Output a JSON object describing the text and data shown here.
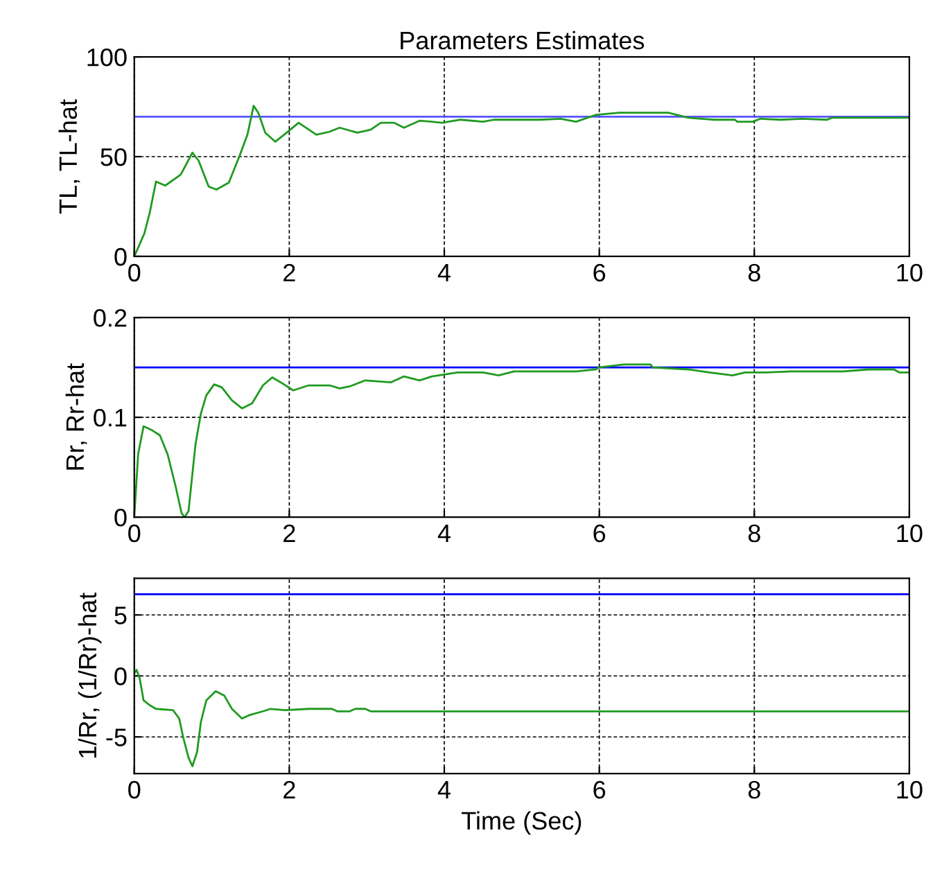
{
  "chart_data": [
    {
      "type": "line",
      "title": "Parameters Estimates",
      "ylabel": "TL, TL-hat",
      "xlim": [
        0,
        10
      ],
      "ylim": [
        0,
        100
      ],
      "xticks": [
        0,
        2,
        4,
        6,
        8,
        10
      ],
      "yticks": [
        0,
        50,
        100
      ],
      "grid": true,
      "series": [
        {
          "color": "#5555ff",
          "x": [
            0,
            10
          ],
          "values": [
            70,
            70
          ]
        },
        {
          "color": "#1f9a1f",
          "x": [
            0,
            0.13,
            0.2,
            0.28,
            0.4,
            0.6,
            0.75,
            0.83,
            0.96,
            1.06,
            1.22,
            1.36,
            1.46,
            1.54,
            1.6,
            1.69,
            1.82,
            1.95,
            2.12,
            2.35,
            2.52,
            2.65,
            2.88,
            3.05,
            3.18,
            3.35,
            3.48,
            3.68,
            3.84,
            3.97,
            4.21,
            4.5,
            4.64,
            5.23,
            5.5,
            5.7,
            5.96,
            6.26,
            6.89,
            7.15,
            7.48,
            7.75,
            7.78,
            7.98,
            8.08,
            8.34,
            8.61,
            8.94,
            9.0,
            10
          ],
          "values": [
            0,
            11.5,
            22,
            37.5,
            35.5,
            41,
            52,
            48,
            35,
            33.5,
            37,
            50.5,
            61,
            75.5,
            72,
            62,
            57.5,
            61.5,
            67,
            61,
            62.5,
            64.5,
            62,
            63.5,
            67,
            67,
            64.5,
            68,
            67.5,
            67,
            68.5,
            67.5,
            68.5,
            68.5,
            69,
            67.5,
            71,
            72,
            72,
            69.5,
            68.5,
            68.5,
            67.5,
            67.5,
            69,
            68.5,
            69,
            68.5,
            69.5,
            69.5
          ]
        }
      ]
    },
    {
      "type": "line",
      "ylabel": "Rr, Rr-hat",
      "xlim": [
        0,
        10
      ],
      "ylim": [
        0,
        0.2
      ],
      "xticks": [
        0,
        2,
        4,
        6,
        8,
        10
      ],
      "yticks": [
        0,
        0.1,
        0.2
      ],
      "grid": true,
      "series": [
        {
          "color": "#0000ff",
          "x": [
            0,
            10
          ],
          "values": [
            0.15,
            0.15
          ]
        },
        {
          "color": "#1f9a1f",
          "x": [
            0,
            0.05,
            0.12,
            0.23,
            0.33,
            0.43,
            0.53,
            0.61,
            0.65,
            0.7,
            0.79,
            0.86,
            0.93,
            1.03,
            1.13,
            1.26,
            1.39,
            1.52,
            1.66,
            1.78,
            1.89,
            2.05,
            2.25,
            2.52,
            2.65,
            2.78,
            2.98,
            3.31,
            3.48,
            3.68,
            3.84,
            4.17,
            4.5,
            4.7,
            4.9,
            5.17,
            5.7,
            5.96,
            5.99,
            6.32,
            6.66,
            6.69,
            7.15,
            7.42,
            7.72,
            7.88,
            8.15,
            8.48,
            9.15,
            9.48,
            9.8,
            9.87,
            10
          ],
          "values": [
            0,
            0.063,
            0.091,
            0.087,
            0.082,
            0.063,
            0.032,
            0.004,
            0,
            0.006,
            0.073,
            0.104,
            0.122,
            0.133,
            0.13,
            0.117,
            0.109,
            0.114,
            0.132,
            0.14,
            0.135,
            0.127,
            0.132,
            0.132,
            0.129,
            0.131,
            0.137,
            0.135,
            0.141,
            0.137,
            0.141,
            0.145,
            0.145,
            0.142,
            0.146,
            0.146,
            0.146,
            0.148,
            0.15,
            0.153,
            0.153,
            0.15,
            0.148,
            0.145,
            0.142,
            0.145,
            0.145,
            0.146,
            0.146,
            0.148,
            0.148,
            0.145,
            0.145
          ]
        }
      ]
    },
    {
      "type": "line",
      "ylabel": "1/Rr, (1/Rr)-hat",
      "xlabel": "Time (Sec)",
      "xlim": [
        0,
        10
      ],
      "ylim": [
        -8,
        8
      ],
      "xticks": [
        0,
        2,
        4,
        6,
        8,
        10
      ],
      "yticks": [
        {
          "value": -5,
          "label": "-5"
        },
        0,
        5
      ],
      "grid": true,
      "series": [
        {
          "color": "#0000ff",
          "x": [
            0,
            10
          ],
          "values": [
            6.7,
            6.7
          ]
        },
        {
          "color": "#1f9a1f",
          "x": [
            0,
            0.03,
            0.07,
            0.12,
            0.2,
            0.28,
            0.5,
            0.58,
            0.63,
            0.7,
            0.75,
            0.81,
            0.86,
            0.93,
            1.05,
            1.16,
            1.26,
            1.39,
            1.49,
            1.66,
            1.76,
            1.95,
            2.25,
            2.55,
            2.62,
            2.78,
            2.85,
            2.98,
            3.05,
            10
          ],
          "values": [
            0.2,
            0.5,
            -0.2,
            -2.0,
            -2.4,
            -2.7,
            -2.8,
            -3.5,
            -5.0,
            -6.7,
            -7.4,
            -6.25,
            -3.75,
            -2.0,
            -1.25,
            -1.6,
            -2.7,
            -3.5,
            -3.2,
            -2.9,
            -2.7,
            -2.8,
            -2.7,
            -2.7,
            -2.9,
            -2.9,
            -2.7,
            -2.7,
            -2.9,
            -2.9
          ]
        }
      ]
    }
  ]
}
